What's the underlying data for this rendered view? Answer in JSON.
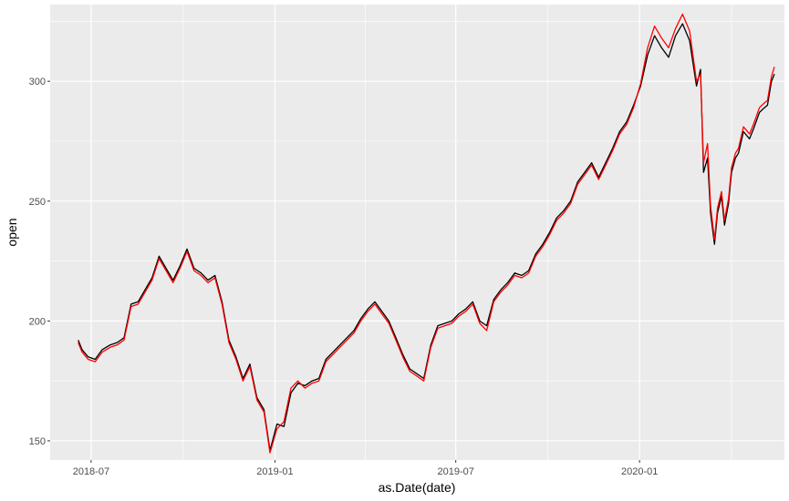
{
  "chart_data": {
    "type": "line",
    "title": "",
    "xlabel": "as.Date(date)",
    "ylabel": "open",
    "x_ticks": [
      "2018-07",
      "2019-01",
      "2019-07",
      "2020-01"
    ],
    "y_ticks": [
      150,
      200,
      250,
      300
    ],
    "xlim": [
      "2018-05-21",
      "2020-05-25"
    ],
    "ylim": [
      142,
      332
    ],
    "grid": true,
    "legend": "none",
    "series": [
      {
        "color": "#000000",
        "x": [
          "2018-06-18",
          "2018-06-22",
          "2018-06-28",
          "2018-07-05",
          "2018-07-12",
          "2018-07-20",
          "2018-07-27",
          "2018-08-03",
          "2018-08-10",
          "2018-08-17",
          "2018-08-24",
          "2018-08-31",
          "2018-09-07",
          "2018-09-14",
          "2018-09-21",
          "2018-09-28",
          "2018-10-05",
          "2018-10-12",
          "2018-10-19",
          "2018-10-26",
          "2018-11-02",
          "2018-11-09",
          "2018-11-16",
          "2018-11-23",
          "2018-11-30",
          "2018-12-07",
          "2018-12-14",
          "2018-12-21",
          "2018-12-27",
          "2019-01-03",
          "2019-01-10",
          "2019-01-17",
          "2019-01-24",
          "2019-01-31",
          "2019-02-07",
          "2019-02-14",
          "2019-02-21",
          "2019-02-28",
          "2019-03-07",
          "2019-03-14",
          "2019-03-21",
          "2019-03-28",
          "2019-04-04",
          "2019-04-11",
          "2019-04-18",
          "2019-04-25",
          "2019-05-02",
          "2019-05-09",
          "2019-05-16",
          "2019-05-23",
          "2019-05-30",
          "2019-06-06",
          "2019-06-13",
          "2019-06-20",
          "2019-06-27",
          "2019-07-04",
          "2019-07-11",
          "2019-07-18",
          "2019-07-25",
          "2019-08-01",
          "2019-08-08",
          "2019-08-15",
          "2019-08-22",
          "2019-08-29",
          "2019-09-05",
          "2019-09-12",
          "2019-09-19",
          "2019-09-26",
          "2019-10-03",
          "2019-10-10",
          "2019-10-17",
          "2019-10-24",
          "2019-10-31",
          "2019-11-07",
          "2019-11-14",
          "2019-11-21",
          "2019-11-28",
          "2019-12-05",
          "2019-12-12",
          "2019-12-19",
          "2019-12-26",
          "2020-01-02",
          "2020-01-09",
          "2020-01-16",
          "2020-01-23",
          "2020-01-30",
          "2020-02-06",
          "2020-02-13",
          "2020-02-20",
          "2020-02-27",
          "2020-03-02",
          "2020-03-05",
          "2020-03-09",
          "2020-03-12",
          "2020-03-16",
          "2020-03-19",
          "2020-03-23",
          "2020-03-26",
          "2020-03-30",
          "2020-04-02",
          "2020-04-06",
          "2020-04-09",
          "2020-04-14",
          "2020-04-20",
          "2020-04-24",
          "2020-04-30",
          "2020-05-05",
          "2020-05-08",
          "2020-05-12",
          "2020-05-15"
        ],
        "values": [
          192,
          188,
          185,
          184,
          188,
          190,
          191,
          193,
          207,
          208,
          213,
          218,
          227,
          222,
          217,
          223,
          230,
          222,
          220,
          217,
          219,
          208,
          192,
          185,
          176,
          182,
          168,
          163,
          146,
          157,
          156,
          170,
          174,
          173,
          175,
          176,
          184,
          187,
          190,
          193,
          196,
          201,
          205,
          208,
          204,
          200,
          193,
          186,
          180,
          178,
          176,
          190,
          198,
          199,
          200,
          203,
          205,
          208,
          200,
          198,
          209,
          213,
          216,
          220,
          219,
          221,
          228,
          232,
          237,
          243,
          246,
          250,
          258,
          262,
          266,
          260,
          266,
          272,
          279,
          283,
          290,
          298,
          311,
          319,
          314,
          310,
          319,
          324,
          317,
          298,
          305,
          262,
          268,
          245,
          232,
          245,
          252,
          240,
          249,
          262,
          268,
          270,
          279,
          276,
          280,
          287,
          289,
          290,
          300,
          303
        ]
      },
      {
        "color": "#ff0000",
        "x": [
          "2018-06-18",
          "2018-06-22",
          "2018-06-28",
          "2018-07-05",
          "2018-07-12",
          "2018-07-20",
          "2018-07-27",
          "2018-08-03",
          "2018-08-10",
          "2018-08-17",
          "2018-08-24",
          "2018-08-31",
          "2018-09-07",
          "2018-09-14",
          "2018-09-21",
          "2018-09-28",
          "2018-10-05",
          "2018-10-12",
          "2018-10-19",
          "2018-10-26",
          "2018-11-02",
          "2018-11-09",
          "2018-11-16",
          "2018-11-23",
          "2018-11-30",
          "2018-12-07",
          "2018-12-14",
          "2018-12-21",
          "2018-12-27",
          "2019-01-03",
          "2019-01-10",
          "2019-01-17",
          "2019-01-24",
          "2019-01-31",
          "2019-02-07",
          "2019-02-14",
          "2019-02-21",
          "2019-02-28",
          "2019-03-07",
          "2019-03-14",
          "2019-03-21",
          "2019-03-28",
          "2019-04-04",
          "2019-04-11",
          "2019-04-18",
          "2019-04-25",
          "2019-05-02",
          "2019-05-09",
          "2019-05-16",
          "2019-05-23",
          "2019-05-30",
          "2019-06-06",
          "2019-06-13",
          "2019-06-20",
          "2019-06-27",
          "2019-07-04",
          "2019-07-11",
          "2019-07-18",
          "2019-07-25",
          "2019-08-01",
          "2019-08-08",
          "2019-08-15",
          "2019-08-22",
          "2019-08-29",
          "2019-09-05",
          "2019-09-12",
          "2019-09-19",
          "2019-09-26",
          "2019-10-03",
          "2019-10-10",
          "2019-10-17",
          "2019-10-24",
          "2019-10-31",
          "2019-11-07",
          "2019-11-14",
          "2019-11-21",
          "2019-11-28",
          "2019-12-05",
          "2019-12-12",
          "2019-12-19",
          "2019-12-26",
          "2020-01-02",
          "2020-01-09",
          "2020-01-16",
          "2020-01-23",
          "2020-01-30",
          "2020-02-06",
          "2020-02-13",
          "2020-02-20",
          "2020-02-27",
          "2020-03-02",
          "2020-03-05",
          "2020-03-09",
          "2020-03-12",
          "2020-03-16",
          "2020-03-19",
          "2020-03-23",
          "2020-03-26",
          "2020-03-30",
          "2020-04-02",
          "2020-04-06",
          "2020-04-09",
          "2020-04-14",
          "2020-04-20",
          "2020-04-24",
          "2020-04-30",
          "2020-05-05",
          "2020-05-08",
          "2020-05-12",
          "2020-05-15"
        ],
        "values": [
          191,
          187,
          184,
          183,
          187,
          189,
          190,
          192,
          206,
          207,
          212,
          217,
          226,
          221,
          216,
          222,
          229,
          221,
          219,
          216,
          218,
          207,
          191,
          184,
          175,
          181,
          167,
          162,
          145,
          155,
          158,
          172,
          175,
          172,
          174,
          175,
          183,
          186,
          189,
          192,
          195,
          200,
          204,
          207,
          203,
          199,
          192,
          185,
          179,
          177,
          175,
          189,
          197,
          198,
          199,
          202,
          204,
          207,
          199,
          196,
          208,
          212,
          215,
          219,
          218,
          220,
          227,
          231,
          236,
          242,
          245,
          249,
          257,
          261,
          265,
          259,
          265,
          271,
          278,
          282,
          289,
          299,
          314,
          323,
          318,
          314,
          322,
          328,
          321,
          300,
          303,
          266,
          274,
          248,
          234,
          247,
          254,
          242,
          251,
          264,
          270,
          272,
          281,
          278,
          282,
          289,
          291,
          292,
          302,
          306
        ]
      }
    ]
  }
}
